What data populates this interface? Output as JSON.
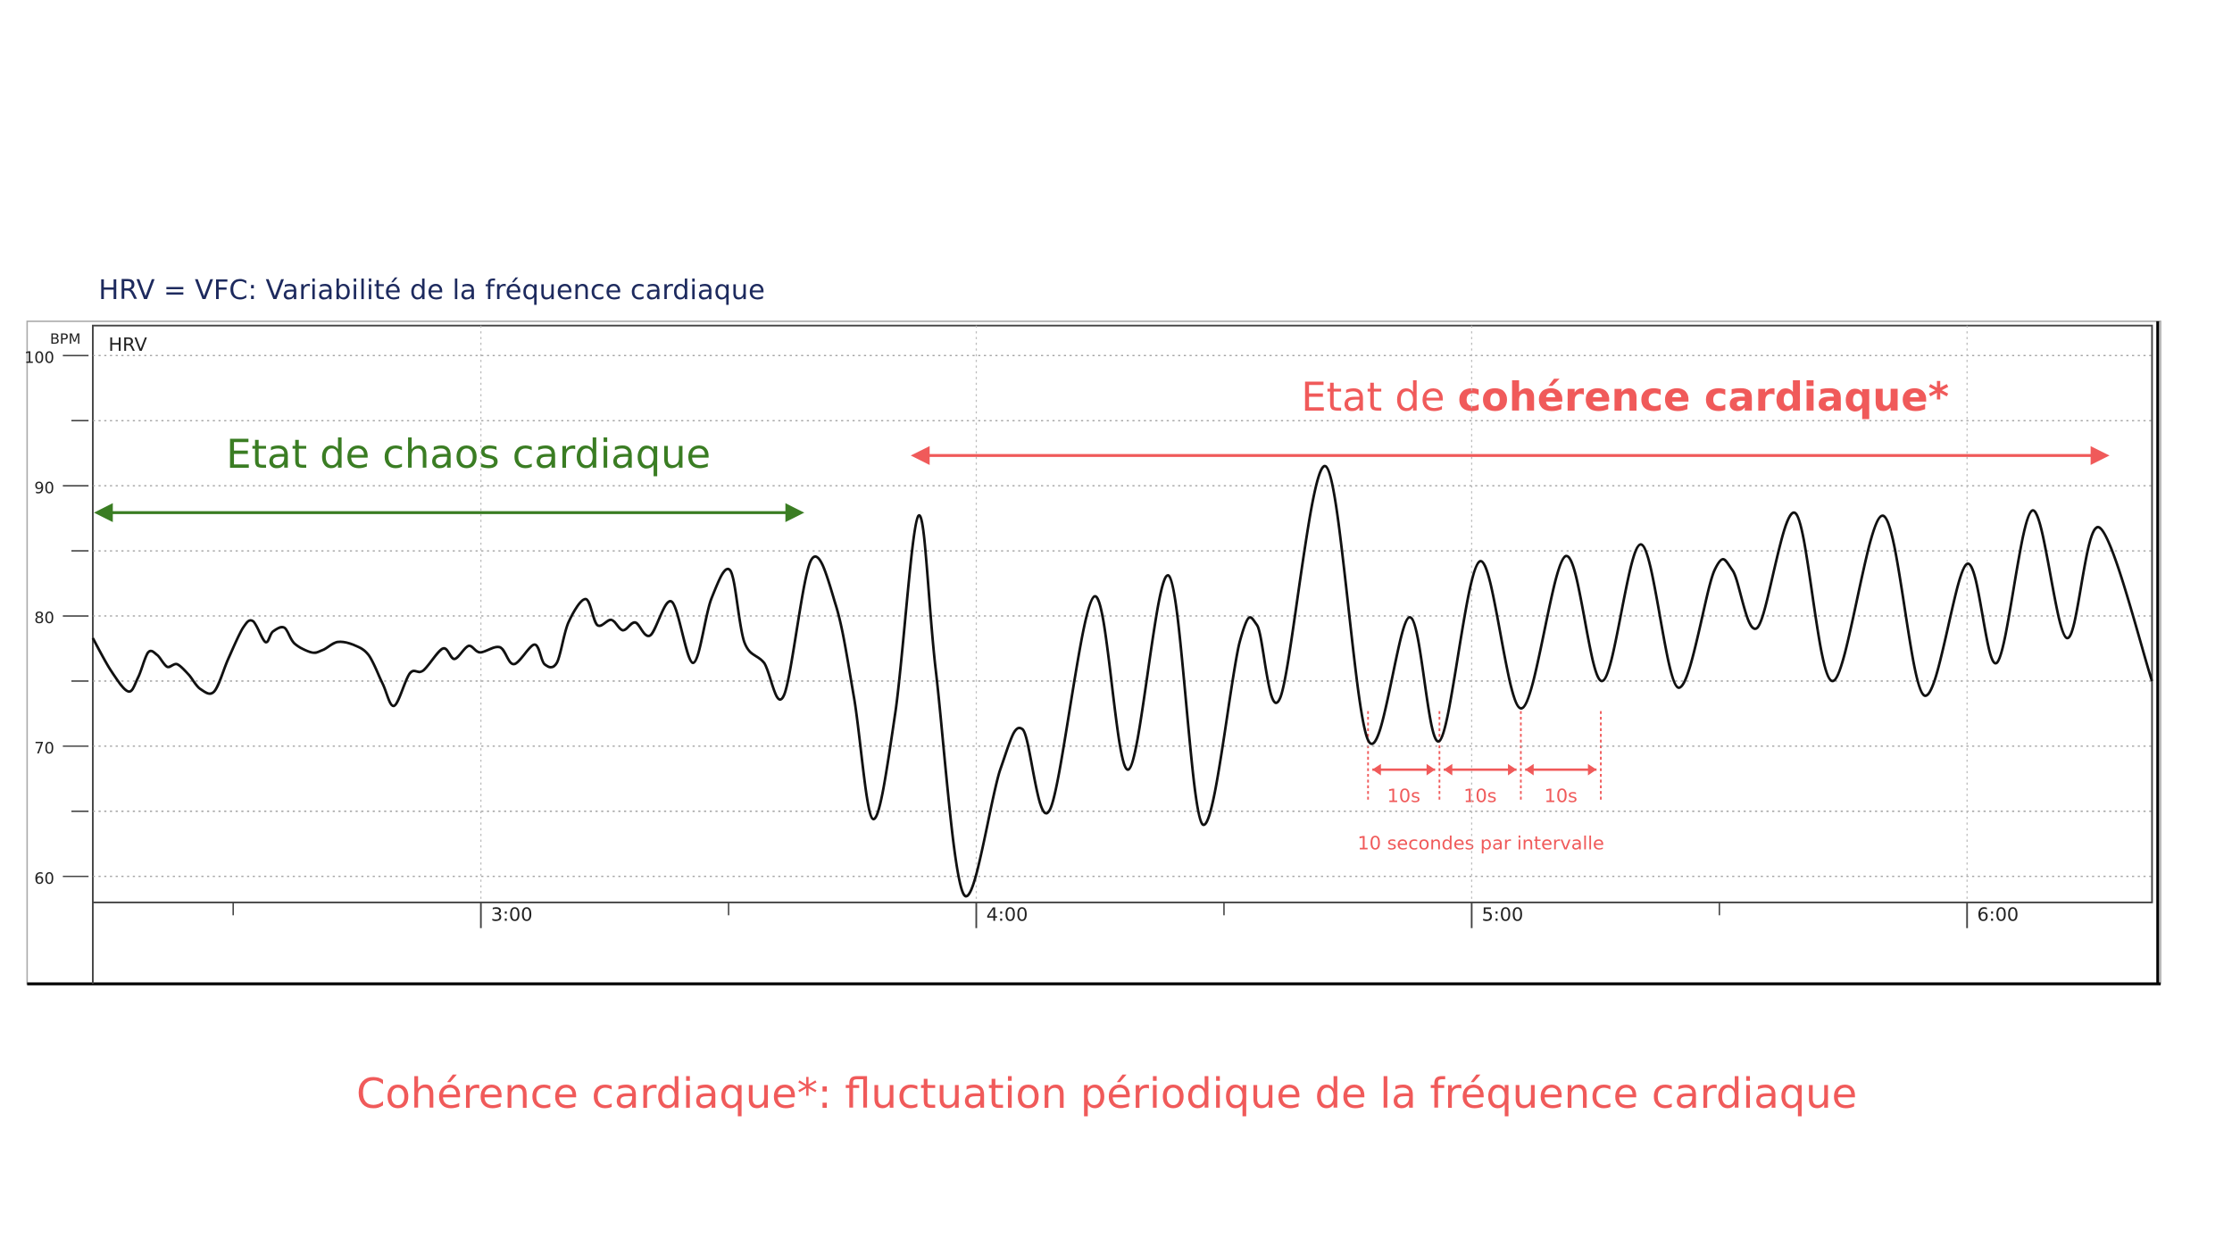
{
  "chart_data": {
    "type": "line",
    "title": "HRV = VFC: Variabilité de la fréquence cardiaque",
    "panel_label": "HRV",
    "y_label": "BPM",
    "chaos_label": "Etat de chaos cardiaque",
    "coherence_label": {
      "prefix": "Etat de ",
      "bold": "cohérence cardiaque*"
    },
    "interval_labels": [
      "10s",
      "10s",
      "10s"
    ],
    "interval_note": "10 secondes par intervalle",
    "caption": "Cohérence cardiaque*: fluctuation périodique de la fréquence cardiaque",
    "color": "#111111",
    "x": [
      133,
      135.2,
      137.3,
      138.5,
      139.7,
      140.8,
      142,
      143.2,
      144.6,
      146,
      147.7,
      149.4,
      151.2,
      152.4,
      153.9,
      154.8,
      156.2,
      157.4,
      159.5,
      160.9,
      162.6,
      164.5,
      166.4,
      168.1,
      169.5,
      171.4,
      173,
      175.4,
      176.8,
      178.5,
      179.9,
      182.3,
      184,
      186.5,
      187.7,
      189.2,
      190.6,
      192.7,
      194.1,
      195.8,
      197.2,
      198.7,
      200.5,
      203.1,
      205.7,
      207.9,
      210.2,
      211.9,
      214.3,
      216.7,
      220,
      223,
      225.2,
      227.5,
      230.2,
      233,
      235.1,
      238.5,
      242.9,
      245.6,
      248.9,
      254.3,
      258.4,
      263.3,
      267.4,
      271.9,
      274,
      276.8,
      282.3,
      287.5,
      292.5,
      296.1,
      301,
      306,
      311.4,
      315.8,
      320.5,
      325,
      329.4,
      331.6,
      334.6,
      339.2,
      343.7,
      349.8,
      354.8,
      360,
      363.6,
      367.9,
      372.1,
      376,
      382.4
    ],
    "values": [
      78.3,
      75.8,
      74.2,
      75.3,
      77.2,
      77.0,
      76.1,
      76.3,
      75.5,
      74.4,
      74.2,
      76.7,
      79.1,
      79.6,
      78.0,
      78.8,
      79.1,
      77.9,
      77.2,
      77.4,
      78.0,
      77.8,
      77.0,
      74.8,
      73.1,
      75.6,
      75.8,
      77.5,
      76.7,
      77.7,
      77.2,
      77.6,
      76.3,
      77.8,
      76.3,
      76.4,
      79.5,
      81.3,
      79.3,
      79.7,
      78.9,
      79.5,
      78.5,
      81.1,
      76.4,
      81.3,
      83.5,
      78.0,
      76.4,
      73.9,
      84.3,
      80.8,
      73.7,
      64.4,
      72.6,
      87.7,
      75.8,
      58.6,
      68.2,
      71.3,
      65.1,
      81.5,
      68.2,
      83.1,
      64.0,
      78.0,
      79.3,
      73.7,
      91.5,
      70.4,
      79.9,
      70.4,
      84.2,
      72.9,
      84.6,
      75.0,
      85.5,
      74.5,
      83.5,
      83.5,
      79.1,
      87.9,
      75.0,
      87.7,
      73.9,
      84.0,
      76.4,
      88.1,
      78.3,
      86.8,
      75.0
    ],
    "xlim": [
      133,
      382.4
    ],
    "ylim": [
      58,
      102.3
    ],
    "xticks": [
      {
        "value": 180,
        "label": "3:00"
      },
      {
        "value": 240,
        "label": "4:00"
      },
      {
        "value": 300,
        "label": "5:00"
      },
      {
        "value": 360,
        "label": "6:00"
      }
    ],
    "xminorticks": [
      150,
      210,
      270,
      330
    ],
    "yticks": [
      60,
      70,
      80,
      90,
      100
    ],
    "ygrid": [
      65,
      75,
      85,
      95
    ],
    "grid": true
  }
}
